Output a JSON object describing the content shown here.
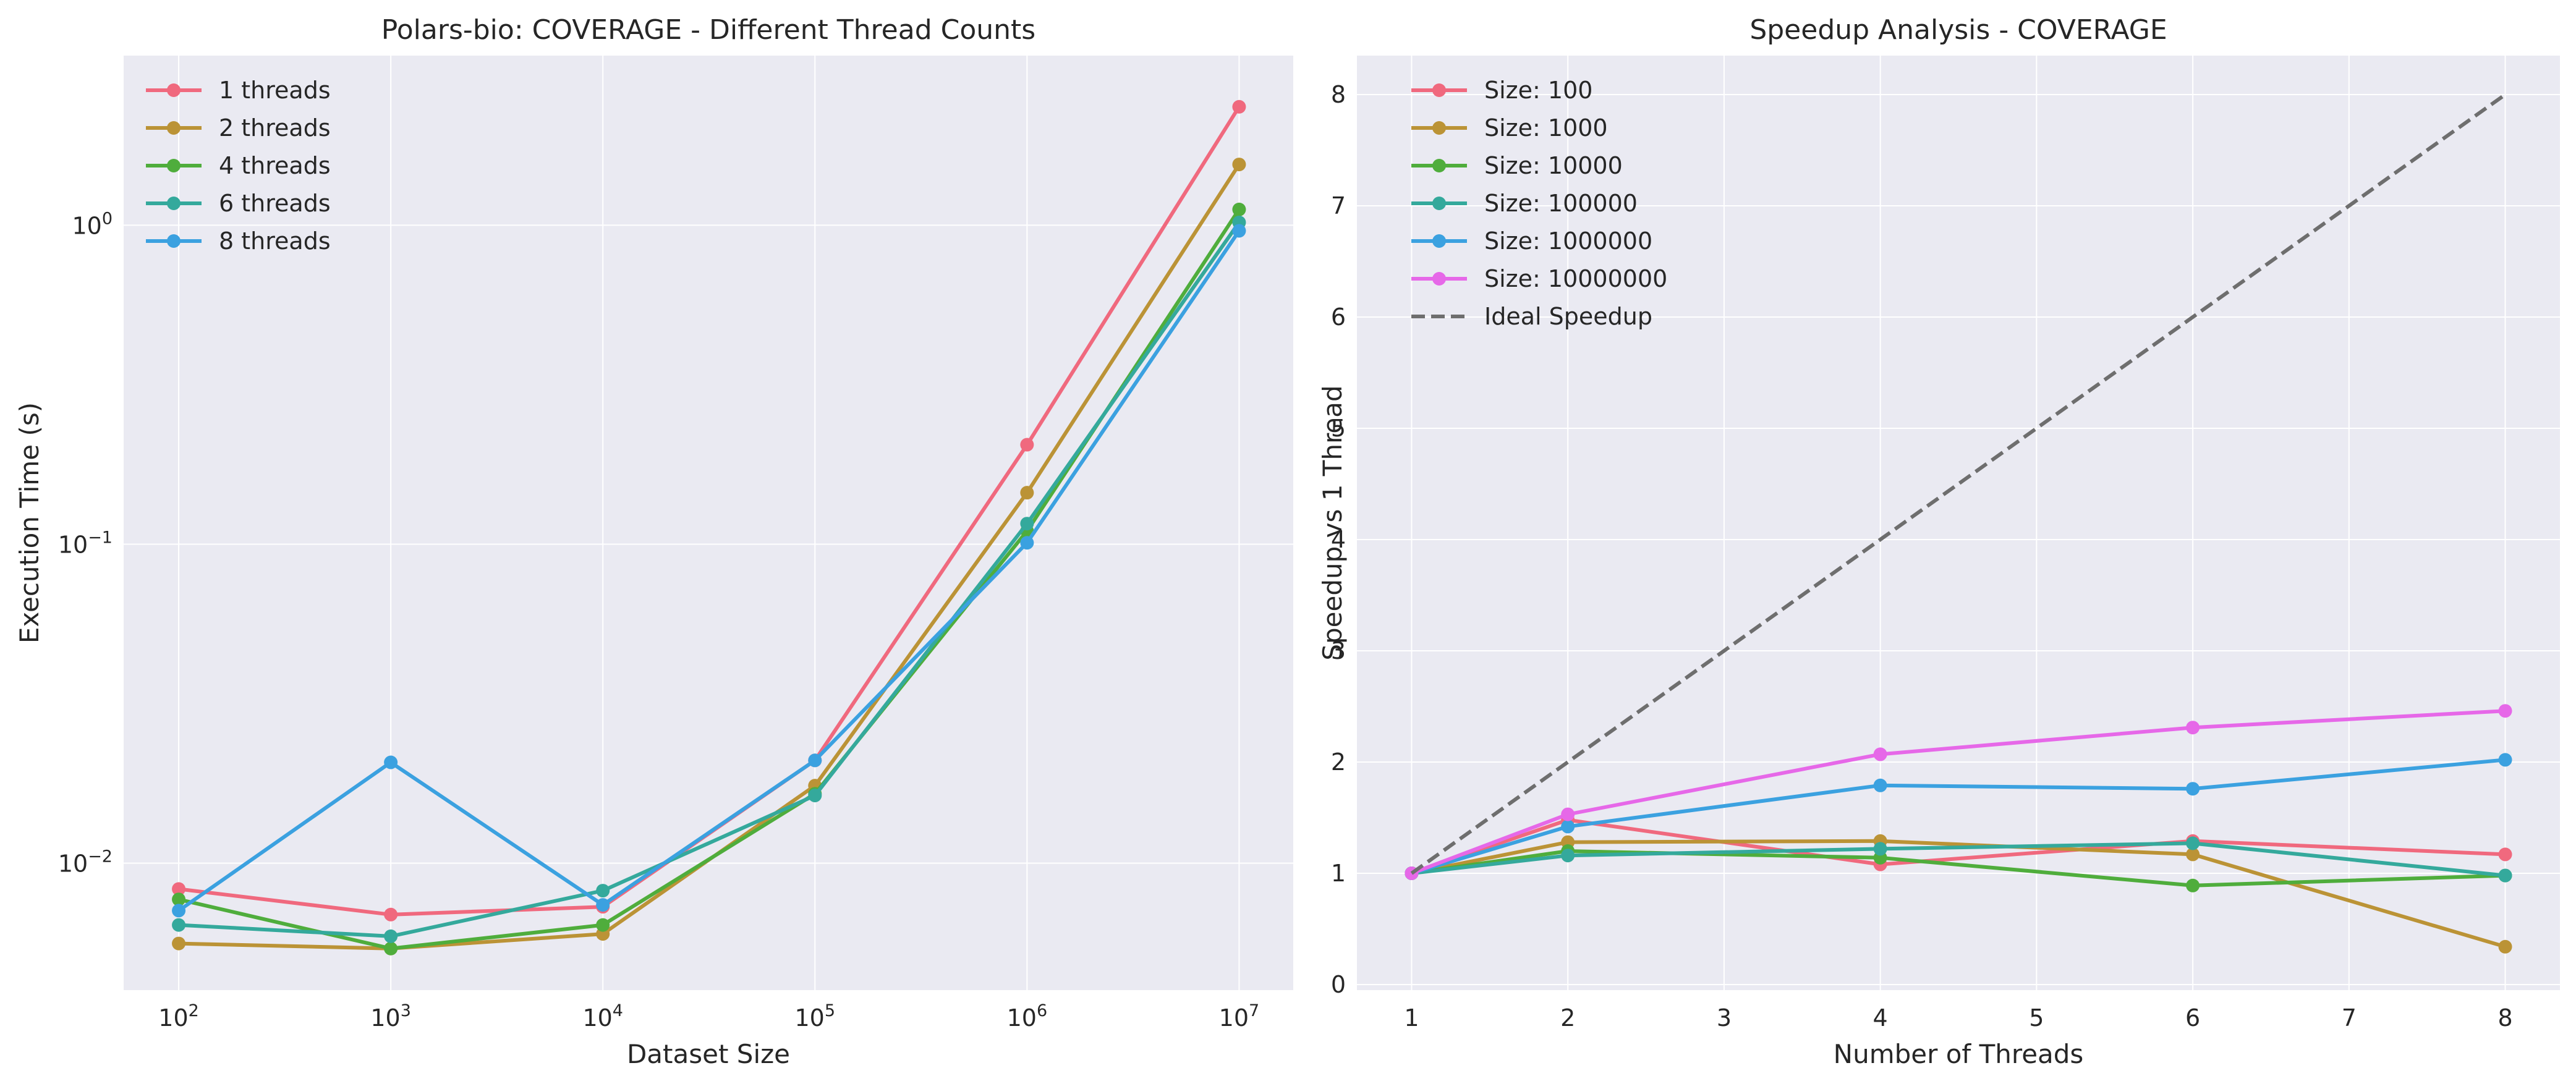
{
  "chart_data": [
    {
      "type": "line",
      "title": "Polars-bio: COVERAGE - Different Thread Counts",
      "xlabel": "Dataset Size",
      "ylabel": "Execution Time (s)",
      "x_scale": "log",
      "y_scale": "log",
      "x": [
        100,
        1000,
        10000,
        100000,
        1000000,
        10000000
      ],
      "x_ticks": [
        {
          "value": 100,
          "base": "10",
          "exp": "2"
        },
        {
          "value": 1000,
          "base": "10",
          "exp": "3"
        },
        {
          "value": 10000,
          "base": "10",
          "exp": "4"
        },
        {
          "value": 100000,
          "base": "10",
          "exp": "5"
        },
        {
          "value": 1000000,
          "base": "10",
          "exp": "6"
        },
        {
          "value": 10000000,
          "base": "10",
          "exp": "7"
        }
      ],
      "y_ticks": [
        {
          "value": 0.01,
          "base": "10",
          "exp": "−2"
        },
        {
          "value": 0.1,
          "base": "10",
          "exp": "−1"
        },
        {
          "value": 1,
          "base": "10",
          "exp": "0"
        }
      ],
      "xlim": [
        55,
        18000000
      ],
      "ylim": [
        0.004,
        3.4
      ],
      "grid": true,
      "legend_position": "top-left",
      "series": [
        {
          "name": "1 threads",
          "color": "#f0697e",
          "values": [
            0.0083,
            0.0069,
            0.0073,
            0.021,
            0.205,
            2.35
          ]
        },
        {
          "name": "2 threads",
          "color": "#bb9336",
          "values": [
            0.0056,
            0.0054,
            0.006,
            0.0175,
            0.145,
            1.55
          ]
        },
        {
          "name": "4 threads",
          "color": "#4fad3c",
          "values": [
            0.0077,
            0.0054,
            0.0064,
            0.0165,
            0.11,
            1.12
          ]
        },
        {
          "name": "6 threads",
          "color": "#34a99c",
          "values": [
            0.0064,
            0.0059,
            0.0082,
            0.0163,
            0.116,
            1.02
          ]
        },
        {
          "name": "8 threads",
          "color": "#3ba1e0",
          "values": [
            0.0071,
            0.0207,
            0.0074,
            0.021,
            0.101,
            0.96
          ]
        }
      ]
    },
    {
      "type": "line",
      "title": "Speedup Analysis - COVERAGE",
      "xlabel": "Number of Threads",
      "ylabel": "Speedup vs 1 Thread",
      "x": [
        1,
        2,
        4,
        6,
        8
      ],
      "x_ticks": [
        "1",
        "2",
        "3",
        "4",
        "5",
        "6",
        "7",
        "8"
      ],
      "y_ticks": [
        "0",
        "1",
        "2",
        "3",
        "4",
        "5",
        "6",
        "7",
        "8"
      ],
      "xlim": [
        0.65,
        8.35
      ],
      "ylim": [
        -0.05,
        8.35
      ],
      "grid": true,
      "legend_position": "top-left",
      "series": [
        {
          "name": "Size: 100",
          "color": "#f0697e",
          "values": [
            1.0,
            1.48,
            1.08,
            1.29,
            1.17
          ]
        },
        {
          "name": "Size: 1000",
          "color": "#bb9336",
          "values": [
            1.0,
            1.28,
            1.29,
            1.17,
            0.34
          ]
        },
        {
          "name": "Size: 10000",
          "color": "#4fad3c",
          "values": [
            1.0,
            1.2,
            1.14,
            0.89,
            0.98
          ]
        },
        {
          "name": "Size: 100000",
          "color": "#34a99c",
          "values": [
            1.0,
            1.16,
            1.22,
            1.27,
            0.98
          ]
        },
        {
          "name": "Size: 1000000",
          "color": "#3ba1e0",
          "values": [
            1.0,
            1.42,
            1.79,
            1.76,
            2.02
          ]
        },
        {
          "name": "Size: 10000000",
          "color": "#e668e8",
          "values": [
            1.0,
            1.53,
            2.07,
            2.31,
            2.46
          ]
        },
        {
          "name": "Ideal Speedup",
          "color": "#6e6e6e",
          "dashed": true,
          "values": [
            1,
            2,
            4,
            6,
            8
          ]
        }
      ]
    }
  ]
}
